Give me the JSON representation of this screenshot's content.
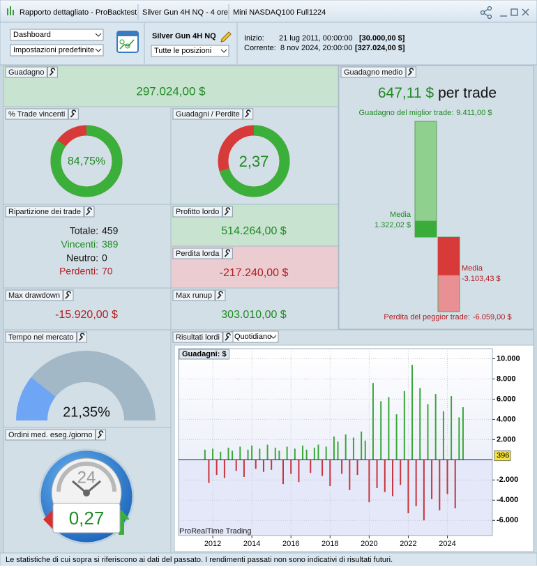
{
  "window": {
    "tabs": [
      "Rapporto dettagliato - ProBacktest",
      "Silver Gun 4H NQ - 4 ore",
      "Mini NASDAQ100 Full1224"
    ]
  },
  "toolbar": {
    "view_select": "Dashboard",
    "settings_select": "Impostazioni predefinite",
    "system_name": "Silver Gun 4H NQ",
    "positions_select": "Tutte le posizioni",
    "start_label": "Inizio:",
    "start_date": "21 lug 2011, 00:00:00",
    "start_capital": "[30.000,00 $]",
    "current_label": "Corrente:",
    "current_date": "8 nov 2024, 20:00:00",
    "current_capital": "[327.024,00 $]"
  },
  "gain": {
    "title": "Guadagno",
    "value": "297.024,00 $"
  },
  "win_rate": {
    "title": "% Trade vincenti",
    "value": 84.75,
    "label": "84,75%"
  },
  "gain_loss_ratio": {
    "title": "Guadagni / Perdite",
    "label": "2,37"
  },
  "breakdown": {
    "title": "Ripartizione dei trade",
    "rows": [
      [
        "Totale:",
        "459"
      ],
      [
        "Vincenti:",
        "389"
      ],
      [
        "Neutro:",
        "0"
      ],
      [
        "Perdenti:",
        "70"
      ]
    ]
  },
  "gross_profit": {
    "title": "Profitto lordo",
    "value": 514264,
    "label": "514.264,00 $"
  },
  "gross_loss": {
    "title": "Perdita lorda",
    "value": -217240,
    "label": "-217.240,00 $"
  },
  "max_drawdown": {
    "title": "Max drawdown",
    "value": "-15.920,00 $"
  },
  "max_runup": {
    "title": "Max runup",
    "value": "303.010,00 $"
  },
  "time_in_market": {
    "title": "Tempo nel mercato",
    "value": 21.35,
    "label": "21,35%"
  },
  "orders_per_day": {
    "title": "Ordini med. eseg./giorno",
    "clock_label": "24",
    "value": "0,27"
  },
  "average_gain": {
    "title": "Guadagno medio",
    "value": "647,11 $",
    "unit": "per trade",
    "best": {
      "caption": "Guadagno del miglior trade:",
      "value": 9411,
      "label": "9.411,00 $"
    },
    "avg_win": {
      "caption": "Media",
      "value": 1322.02,
      "label": "1.322,02 $"
    },
    "avg_loss": {
      "caption": "Media",
      "value": -3103.43,
      "label": "-3.103,43 $"
    },
    "worst": {
      "caption": "Perdita del peggior trade:",
      "value": -6059,
      "label": "-6.059,00 $"
    }
  },
  "chart_data": {
    "type": "bar",
    "title": "Risultati lordi",
    "period_select": "Quotidiano",
    "series_label": "Guadagni: $",
    "watermark": "ProRealTime Trading",
    "x": [
      2011.6,
      2011.8,
      2012.0,
      2012.2,
      2012.4,
      2012.6,
      2012.8,
      2013.0,
      2013.2,
      2013.4,
      2013.6,
      2013.8,
      2014.0,
      2014.2,
      2014.4,
      2014.6,
      2014.8,
      2015.0,
      2015.2,
      2015.4,
      2015.6,
      2015.8,
      2016.0,
      2016.2,
      2016.4,
      2016.6,
      2016.8,
      2017.0,
      2017.2,
      2017.4,
      2017.6,
      2017.8,
      2018.0,
      2018.2,
      2018.4,
      2018.6,
      2018.8,
      2019.0,
      2019.2,
      2019.4,
      2019.6,
      2019.8,
      2020.0,
      2020.2,
      2020.4,
      2020.6,
      2020.8,
      2021.0,
      2021.2,
      2021.4,
      2021.6,
      2021.8,
      2022.0,
      2022.2,
      2022.4,
      2022.6,
      2022.8,
      2023.0,
      2023.2,
      2023.4,
      2023.6,
      2023.8,
      2024.0,
      2024.2,
      2024.4,
      2024.6,
      2024.8
    ],
    "values": [
      1000,
      -2300,
      1100,
      -1500,
      800,
      -1800,
      1200,
      900,
      -1100,
      1300,
      -1700,
      1000,
      1400,
      -900,
      1100,
      -1200,
      1500,
      -1000,
      1200,
      900,
      -2400,
      1300,
      -1400,
      1100,
      -2200,
      1400,
      1000,
      -1300,
      1200,
      1500,
      -1600,
      1300,
      -2600,
      2300,
      1800,
      -1400,
      2500,
      -3000,
      2200,
      -1500,
      2800,
      1900,
      -4200,
      7600,
      -2800,
      5800,
      -3200,
      6200,
      -3600,
      4500,
      -2500,
      6800,
      -5300,
      9400,
      -4600,
      7100,
      -6000,
      5500,
      -3900,
      6500,
      -5000,
      4800,
      -3400,
      6300,
      -4800,
      4200,
      5200
    ],
    "positive_color": "#3aa63a",
    "negative_color": "#c8343a",
    "xlim": [
      2010.25,
      2026.3
    ],
    "xticks": [
      2012,
      2014,
      2016,
      2018,
      2020,
      2022,
      2024
    ],
    "ylim": [
      -7500,
      11000
    ],
    "yticks": [
      {
        "value": 10000,
        "label": "10.000"
      },
      {
        "value": 8000,
        "label": "8.000"
      },
      {
        "value": 6000,
        "label": "6.000"
      },
      {
        "value": 4000,
        "label": "4.000"
      },
      {
        "value": 2000,
        "label": "2.000"
      },
      {
        "value": -2000,
        "label": "-2.000"
      },
      {
        "value": -4000,
        "label": "-4.000"
      },
      {
        "value": -6000,
        "label": "-6.000"
      }
    ],
    "last_value": 396,
    "grid": true
  },
  "footer": "Le statistiche di cui sopra si riferiscono ai dati del passato. I rendimenti passati non sono indicativi di risultati futuri."
}
